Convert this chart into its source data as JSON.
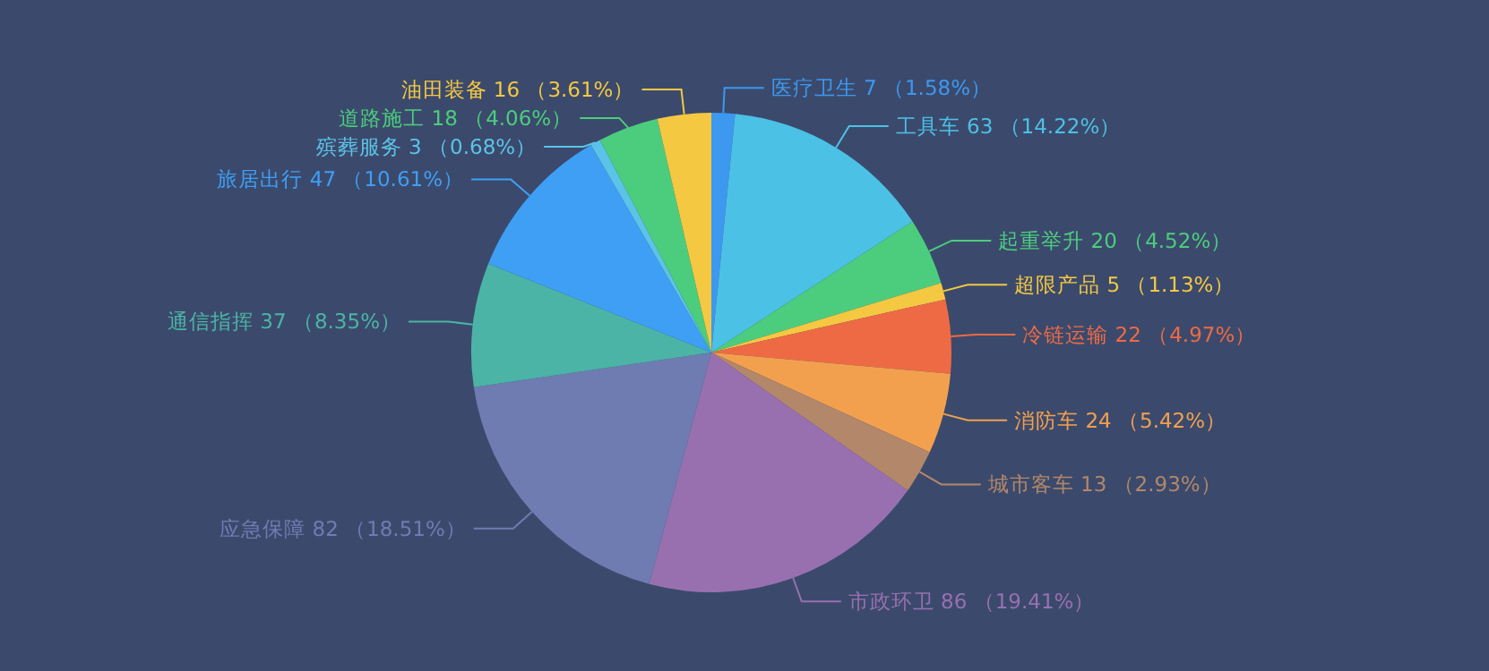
{
  "chart_data": {
    "type": "pie",
    "categories": [
      "医疗卫生",
      "工具车",
      "起重举升",
      "超限产品",
      "冷链运输",
      "消防车",
      "城市客车",
      "市政环卫",
      "应急保障",
      "通信指挥",
      "旅居出行",
      "殡葬服务",
      "道路施工",
      "油田装备"
    ],
    "values": [
      7,
      63,
      20,
      5,
      22,
      24,
      13,
      86,
      82,
      37,
      47,
      3,
      18,
      16
    ],
    "value_labels": [
      "7 （1.58%）",
      "63 （14.22%）",
      "20 （4.52%）",
      "5 （1.13%）",
      "22 （4.97%）",
      "24 （5.42%）",
      "13 （2.93%）",
      "86 （19.41%）",
      "82 （18.51%）",
      "37 （8.35%）",
      "47 （10.61%）",
      "3 （0.68%）",
      "18 （4.06%）",
      "16 （3.61%）"
    ],
    "colors": [
      "#3d98f0",
      "#4cc1e6",
      "#4ccd7e",
      "#f5c842",
      "#ee6a45",
      "#f3a04e",
      "#b3876a",
      "#9870b0",
      "#6e7cb2",
      "#4bb4a6",
      "#3e9ff5",
      "#5cc3e8",
      "#4ccd7e",
      "#f5c842"
    ]
  }
}
